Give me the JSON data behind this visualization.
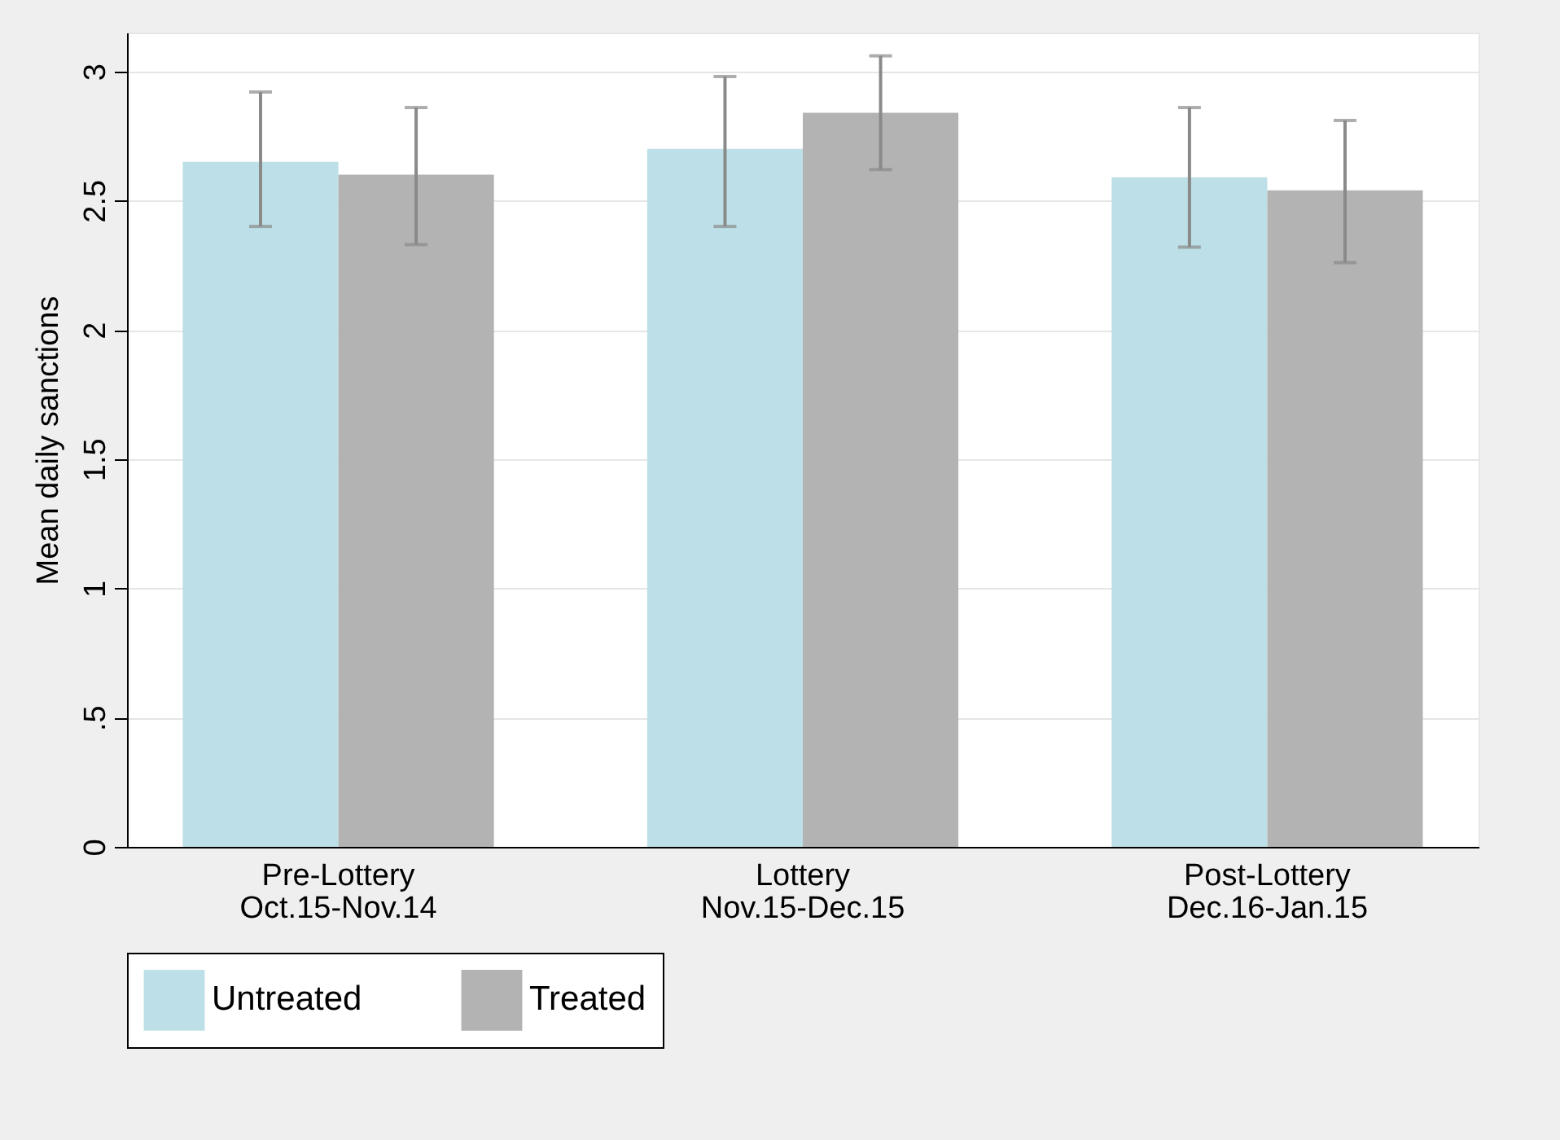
{
  "chart_data": {
    "type": "bar",
    "ylabel": "Mean daily sanctions",
    "categories": [
      "Pre-Lottery\nOct.15-Nov.14",
      "Lottery\nNov.15-Dec.15",
      "Post-Lottery\nDec.16-Jan.15"
    ],
    "series": [
      {
        "name": "Untreated",
        "color": "#bddfe7",
        "values": [
          2.65,
          2.7,
          2.59
        ],
        "errors": [
          [
            2.4,
            2.92
          ],
          [
            2.4,
            2.98
          ],
          [
            2.32,
            2.86
          ]
        ]
      },
      {
        "name": "Treated",
        "color": "#b3b3b3",
        "values": [
          2.6,
          2.84,
          2.54
        ],
        "errors": [
          [
            2.33,
            2.86
          ],
          [
            2.62,
            3.06
          ],
          [
            2.26,
            2.81
          ]
        ]
      }
    ],
    "ylim": [
      0,
      3.15
    ],
    "yticks": [
      0,
      {
        "value": 0.5,
        "label": ".5"
      },
      1,
      1.5,
      2,
      2.5,
      3
    ],
    "grid": "y",
    "legend": "bottom"
  }
}
